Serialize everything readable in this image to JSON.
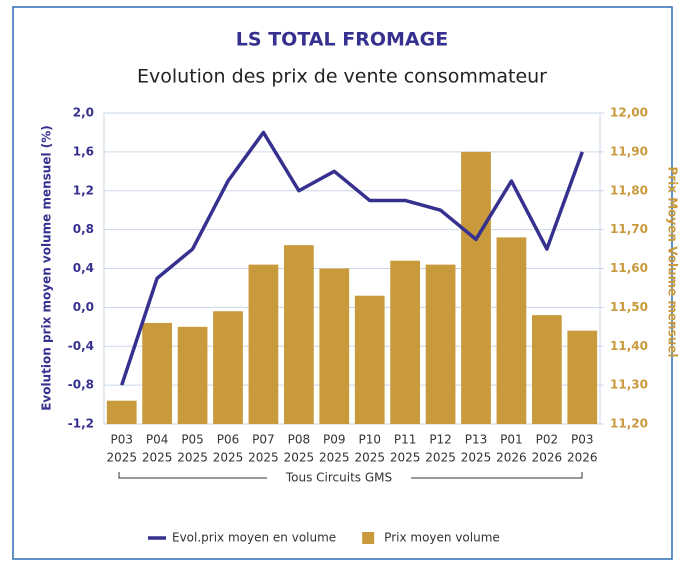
{
  "chart_data": {
    "type": "bar_line",
    "title": "LS TOTAL FROMAGE",
    "subtitle": "Evolution des prix de vente consommateur",
    "y_axis_label": "Evolution prix moyen volume mensuel (%)",
    "y2_axis_label": "Prix Moyen Volume mensuel",
    "group_label": "Tous Circuits GMS",
    "categories": [
      [
        "P03",
        "2025"
      ],
      [
        "P04",
        "2025"
      ],
      [
        "P05",
        "2025"
      ],
      [
        "P06",
        "2025"
      ],
      [
        "P07",
        "2025"
      ],
      [
        "P08",
        "2025"
      ],
      [
        "P09",
        "2025"
      ],
      [
        "P10",
        "2025"
      ],
      [
        "P11",
        "2025"
      ],
      [
        "P12",
        "2025"
      ],
      [
        "P13",
        "2025"
      ],
      [
        "P01",
        "2026"
      ],
      [
        "P02",
        "2026"
      ],
      [
        "P03",
        "2026"
      ]
    ],
    "series": [
      {
        "name": "Evol.prix moyen en volume",
        "type": "line",
        "color": "#36318f",
        "axis": "y",
        "values": [
          -0.8,
          0.3,
          0.6,
          1.3,
          1.8,
          1.2,
          1.4,
          1.1,
          1.1,
          1.0,
          0.7,
          1.3,
          0.6,
          1.6
        ]
      },
      {
        "name": "Prix moyen volume",
        "type": "bar",
        "color": "#c99a3b",
        "axis": "y2",
        "values": [
          11.26,
          11.46,
          11.45,
          11.49,
          11.61,
          11.66,
          11.6,
          11.53,
          11.62,
          11.61,
          11.9,
          11.68,
          11.48,
          11.44
        ]
      }
    ],
    "ylim": [
      -1.2,
      2.0
    ],
    "yticks": [
      {
        "value": -1.2,
        "label": "-1,2"
      },
      {
        "value": -0.8,
        "label": "-0,8"
      },
      {
        "value": -0.4,
        "label": "-0,4"
      },
      {
        "value": 0,
        "label": "0,0"
      },
      {
        "value": 0.4,
        "label": "0,4"
      },
      {
        "value": 0.8,
        "label": "0,8"
      },
      {
        "value": 1.2,
        "label": "1,2"
      },
      {
        "value": 1.6,
        "label": "1,6"
      },
      {
        "value": 2.0,
        "label": "2,0"
      }
    ],
    "y2lim": [
      11.2,
      12.0
    ],
    "y2ticks": [
      {
        "value": 11.2,
        "label": "11,20"
      },
      {
        "value": 11.3,
        "label": "11,30"
      },
      {
        "value": 11.4,
        "label": "11,40"
      },
      {
        "value": 11.5,
        "label": "11,50"
      },
      {
        "value": 11.6,
        "label": "11,60"
      },
      {
        "value": 11.7,
        "label": "11,70"
      },
      {
        "value": 11.8,
        "label": "11,80"
      },
      {
        "value": 11.9,
        "label": "11,90"
      },
      {
        "value": 12.0,
        "label": "12,00"
      }
    ],
    "grid": true
  }
}
